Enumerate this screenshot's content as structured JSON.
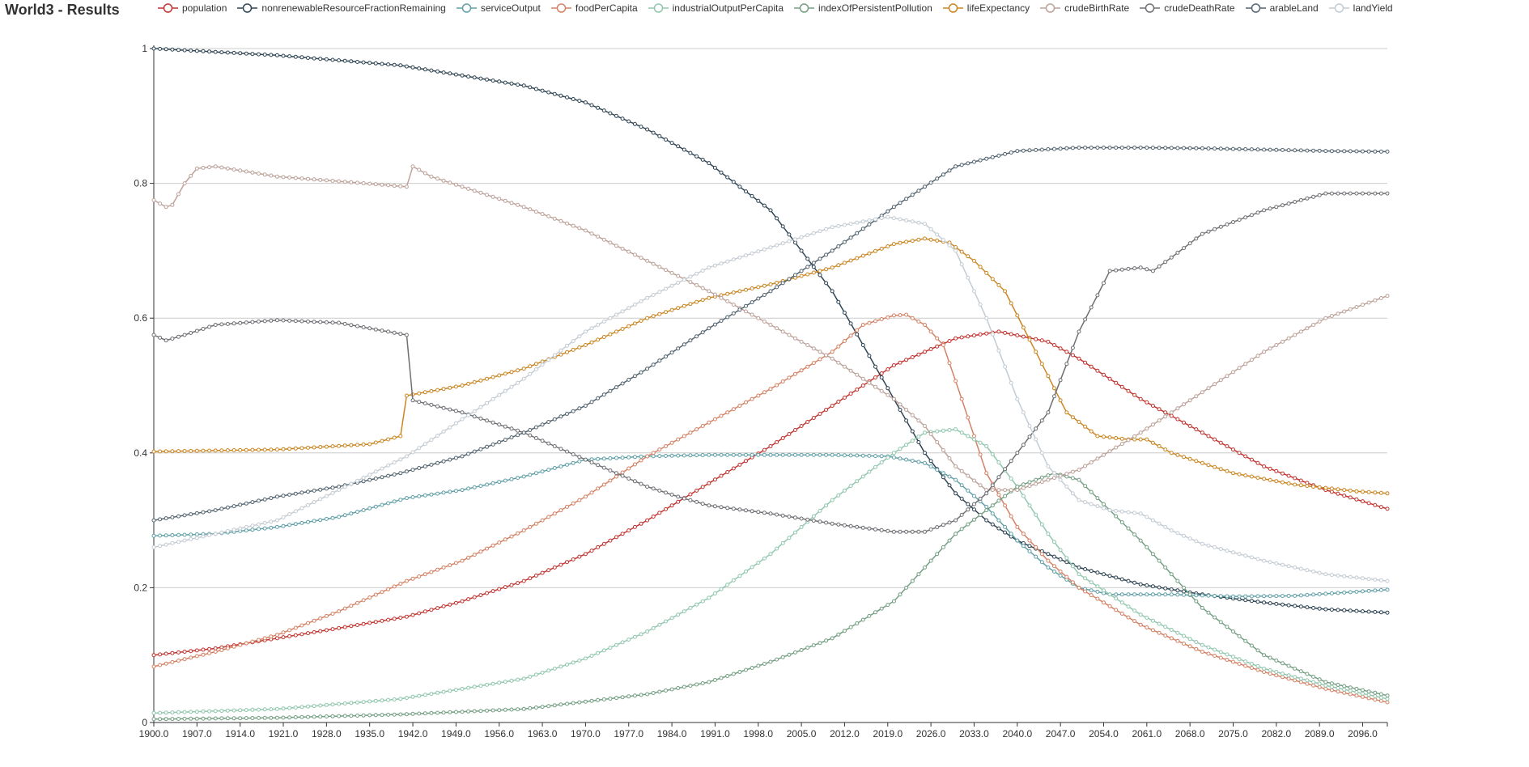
{
  "page": {
    "title": "World3 - Results"
  },
  "chart_data": {
    "type": "line",
    "title": "World3 - Results",
    "xlabel": "",
    "ylabel": "",
    "xlim": [
      1900,
      2100
    ],
    "ylim": [
      0,
      1
    ],
    "y_ticks": [
      "0",
      "0.2",
      "0.4",
      "0.6",
      "0.8",
      "1"
    ],
    "x_tick_labels": [
      "1900.0",
      "1907.0",
      "1914.0",
      "1921.0",
      "1928.0",
      "1935.0",
      "1942.0",
      "1949.0",
      "1956.0",
      "1963.0",
      "1970.0",
      "1977.0",
      "1984.0",
      "1991.0",
      "1998.0",
      "2005.0",
      "2012.0",
      "2019.0",
      "2026.0",
      "2033.0",
      "2040.0",
      "2047.0",
      "2054.0",
      "2061.0",
      "2068.0",
      "2075.0",
      "2082.0",
      "2089.0",
      "2096.0"
    ],
    "grid": "horizontal",
    "legend_position": "top",
    "markers": "hollow-circle",
    "series": [
      {
        "name": "population",
        "color": "#c23531",
        "points": [
          [
            1900,
            0.1
          ],
          [
            1910,
            0.11
          ],
          [
            1920,
            0.125
          ],
          [
            1930,
            0.14
          ],
          [
            1941,
            0.157
          ],
          [
            1950,
            0.18
          ],
          [
            1960,
            0.21
          ],
          [
            1970,
            0.25
          ],
          [
            1980,
            0.3
          ],
          [
            1990,
            0.355
          ],
          [
            2000,
            0.41
          ],
          [
            2010,
            0.47
          ],
          [
            2020,
            0.53
          ],
          [
            2030,
            0.57
          ],
          [
            2037,
            0.58
          ],
          [
            2045,
            0.565
          ],
          [
            2050,
            0.54
          ],
          [
            2060,
            0.48
          ],
          [
            2070,
            0.43
          ],
          [
            2080,
            0.38
          ],
          [
            2090,
            0.345
          ],
          [
            2100,
            0.317
          ]
        ]
      },
      {
        "name": "nonrenewableResourceFractionRemaining",
        "color": "#2f4554",
        "points": [
          [
            1900,
            1.0
          ],
          [
            1920,
            0.99
          ],
          [
            1940,
            0.975
          ],
          [
            1960,
            0.945
          ],
          [
            1970,
            0.92
          ],
          [
            1980,
            0.88
          ],
          [
            1990,
            0.83
          ],
          [
            2000,
            0.76
          ],
          [
            2005,
            0.7
          ],
          [
            2010,
            0.64
          ],
          [
            2015,
            0.56
          ],
          [
            2020,
            0.48
          ],
          [
            2025,
            0.4
          ],
          [
            2030,
            0.34
          ],
          [
            2035,
            0.3
          ],
          [
            2040,
            0.27
          ],
          [
            2050,
            0.23
          ],
          [
            2060,
            0.205
          ],
          [
            2070,
            0.19
          ],
          [
            2080,
            0.178
          ],
          [
            2090,
            0.168
          ],
          [
            2100,
            0.163
          ]
        ]
      },
      {
        "name": "serviceOutput",
        "color": "#61a0a8",
        "points": [
          [
            1900,
            0.277
          ],
          [
            1910,
            0.28
          ],
          [
            1920,
            0.29
          ],
          [
            1930,
            0.305
          ],
          [
            1941,
            0.333
          ],
          [
            1950,
            0.345
          ],
          [
            1960,
            0.365
          ],
          [
            1970,
            0.39
          ],
          [
            1980,
            0.395
          ],
          [
            1990,
            0.397
          ],
          [
            2000,
            0.397
          ],
          [
            2010,
            0.397
          ],
          [
            2019,
            0.395
          ],
          [
            2025,
            0.385
          ],
          [
            2030,
            0.36
          ],
          [
            2035,
            0.32
          ],
          [
            2040,
            0.27
          ],
          [
            2045,
            0.23
          ],
          [
            2050,
            0.2
          ],
          [
            2055,
            0.19
          ],
          [
            2065,
            0.19
          ],
          [
            2075,
            0.187
          ],
          [
            2085,
            0.188
          ],
          [
            2100,
            0.197
          ]
        ]
      },
      {
        "name": "foodPerCapita",
        "color": "#d48265",
        "points": [
          [
            1900,
            0.083
          ],
          [
            1910,
            0.105
          ],
          [
            1920,
            0.13
          ],
          [
            1930,
            0.165
          ],
          [
            1941,
            0.21
          ],
          [
            1950,
            0.24
          ],
          [
            1960,
            0.285
          ],
          [
            1970,
            0.335
          ],
          [
            1980,
            0.395
          ],
          [
            1990,
            0.445
          ],
          [
            2000,
            0.495
          ],
          [
            2010,
            0.55
          ],
          [
            2015,
            0.59
          ],
          [
            2020,
            0.604
          ],
          [
            2022,
            0.605
          ],
          [
            2025,
            0.59
          ],
          [
            2028,
            0.56
          ],
          [
            2031,
            0.48
          ],
          [
            2035,
            0.37
          ],
          [
            2040,
            0.29
          ],
          [
            2045,
            0.24
          ],
          [
            2050,
            0.2
          ],
          [
            2060,
            0.145
          ],
          [
            2070,
            0.105
          ],
          [
            2080,
            0.075
          ],
          [
            2090,
            0.05
          ],
          [
            2100,
            0.03
          ]
        ]
      },
      {
        "name": "industrialOutputPerCapita",
        "color": "#91c7ae",
        "points": [
          [
            1900,
            0.014
          ],
          [
            1920,
            0.02
          ],
          [
            1940,
            0.035
          ],
          [
            1960,
            0.065
          ],
          [
            1970,
            0.095
          ],
          [
            1980,
            0.135
          ],
          [
            1990,
            0.185
          ],
          [
            2000,
            0.25
          ],
          [
            2010,
            0.33
          ],
          [
            2020,
            0.4
          ],
          [
            2025,
            0.43
          ],
          [
            2030,
            0.435
          ],
          [
            2035,
            0.41
          ],
          [
            2040,
            0.35
          ],
          [
            2045,
            0.28
          ],
          [
            2050,
            0.22
          ],
          [
            2060,
            0.16
          ],
          [
            2070,
            0.115
          ],
          [
            2080,
            0.08
          ],
          [
            2090,
            0.055
          ],
          [
            2100,
            0.035
          ]
        ]
      },
      {
        "name": "indexOfPersistentPollution",
        "color": "#749f83",
        "points": [
          [
            1900,
            0.005
          ],
          [
            1920,
            0.007
          ],
          [
            1940,
            0.012
          ],
          [
            1960,
            0.02
          ],
          [
            1980,
            0.042
          ],
          [
            1990,
            0.06
          ],
          [
            2000,
            0.09
          ],
          [
            2010,
            0.125
          ],
          [
            2020,
            0.18
          ],
          [
            2030,
            0.28
          ],
          [
            2040,
            0.35
          ],
          [
            2046,
            0.37
          ],
          [
            2050,
            0.36
          ],
          [
            2060,
            0.27
          ],
          [
            2070,
            0.17
          ],
          [
            2080,
            0.1
          ],
          [
            2090,
            0.06
          ],
          [
            2100,
            0.04
          ]
        ]
      },
      {
        "name": "lifeExpectancy",
        "color": "#ca8622",
        "points": [
          [
            1900,
            0.402
          ],
          [
            1920,
            0.405
          ],
          [
            1935,
            0.413
          ],
          [
            1940,
            0.425
          ],
          [
            1941,
            0.485
          ],
          [
            1950,
            0.5
          ],
          [
            1960,
            0.525
          ],
          [
            1970,
            0.56
          ],
          [
            1980,
            0.6
          ],
          [
            1990,
            0.63
          ],
          [
            2000,
            0.65
          ],
          [
            2010,
            0.675
          ],
          [
            2020,
            0.71
          ],
          [
            2025,
            0.718
          ],
          [
            2029,
            0.712
          ],
          [
            2033,
            0.685
          ],
          [
            2038,
            0.64
          ],
          [
            2043,
            0.55
          ],
          [
            2048,
            0.46
          ],
          [
            2053,
            0.425
          ],
          [
            2058,
            0.42
          ],
          [
            2061,
            0.42
          ],
          [
            2065,
            0.4
          ],
          [
            2075,
            0.37
          ],
          [
            2085,
            0.353
          ],
          [
            2095,
            0.343
          ],
          [
            2100,
            0.34
          ]
        ]
      },
      {
        "name": "crudeBirthRate",
        "color": "#bda29a",
        "points": [
          [
            1900,
            0.775
          ],
          [
            1902,
            0.765
          ],
          [
            1903,
            0.768
          ],
          [
            1905,
            0.8
          ],
          [
            1907,
            0.822
          ],
          [
            1910,
            0.825
          ],
          [
            1920,
            0.81
          ],
          [
            1930,
            0.803
          ],
          [
            1941,
            0.795
          ],
          [
            1942,
            0.825
          ],
          [
            1945,
            0.81
          ],
          [
            1950,
            0.795
          ],
          [
            1960,
            0.765
          ],
          [
            1970,
            0.73
          ],
          [
            1980,
            0.685
          ],
          [
            1990,
            0.64
          ],
          [
            2000,
            0.59
          ],
          [
            2010,
            0.54
          ],
          [
            2020,
            0.48
          ],
          [
            2025,
            0.44
          ],
          [
            2030,
            0.38
          ],
          [
            2035,
            0.345
          ],
          [
            2040,
            0.345
          ],
          [
            2050,
            0.375
          ],
          [
            2060,
            0.43
          ],
          [
            2070,
            0.49
          ],
          [
            2080,
            0.55
          ],
          [
            2090,
            0.6
          ],
          [
            2100,
            0.633
          ]
        ]
      },
      {
        "name": "crudeDeathRate",
        "color": "#6e7074",
        "points": [
          [
            1900,
            0.575
          ],
          [
            1902,
            0.567
          ],
          [
            1905,
            0.575
          ],
          [
            1910,
            0.59
          ],
          [
            1920,
            0.597
          ],
          [
            1930,
            0.593
          ],
          [
            1941,
            0.575
          ],
          [
            1942,
            0.478
          ],
          [
            1950,
            0.46
          ],
          [
            1960,
            0.43
          ],
          [
            1970,
            0.39
          ],
          [
            1980,
            0.35
          ],
          [
            1985,
            0.335
          ],
          [
            1990,
            0.322
          ],
          [
            2000,
            0.31
          ],
          [
            2010,
            0.295
          ],
          [
            2020,
            0.283
          ],
          [
            2025,
            0.283
          ],
          [
            2030,
            0.3
          ],
          [
            2035,
            0.34
          ],
          [
            2040,
            0.4
          ],
          [
            2045,
            0.46
          ],
          [
            2050,
            0.58
          ],
          [
            2055,
            0.67
          ],
          [
            2060,
            0.675
          ],
          [
            2062,
            0.67
          ],
          [
            2065,
            0.69
          ],
          [
            2070,
            0.725
          ],
          [
            2080,
            0.76
          ],
          [
            2090,
            0.785
          ],
          [
            2100,
            0.785
          ]
        ]
      },
      {
        "name": "arableLand",
        "color": "#546570",
        "points": [
          [
            1900,
            0.3
          ],
          [
            1910,
            0.315
          ],
          [
            1920,
            0.335
          ],
          [
            1930,
            0.35
          ],
          [
            1940,
            0.37
          ],
          [
            1950,
            0.395
          ],
          [
            1960,
            0.43
          ],
          [
            1970,
            0.47
          ],
          [
            1980,
            0.525
          ],
          [
            1990,
            0.585
          ],
          [
            2000,
            0.64
          ],
          [
            2010,
            0.7
          ],
          [
            2020,
            0.765
          ],
          [
            2030,
            0.825
          ],
          [
            2040,
            0.848
          ],
          [
            2050,
            0.853
          ],
          [
            2060,
            0.853
          ],
          [
            2070,
            0.852
          ],
          [
            2080,
            0.85
          ],
          [
            2090,
            0.848
          ],
          [
            2100,
            0.847
          ]
        ]
      },
      {
        "name": "landYield",
        "color": "#c4ccd3",
        "points": [
          [
            1900,
            0.26
          ],
          [
            1910,
            0.28
          ],
          [
            1920,
            0.3
          ],
          [
            1930,
            0.345
          ],
          [
            1941,
            0.395
          ],
          [
            1950,
            0.45
          ],
          [
            1960,
            0.51
          ],
          [
            1970,
            0.58
          ],
          [
            1980,
            0.63
          ],
          [
            1990,
            0.675
          ],
          [
            2000,
            0.705
          ],
          [
            2010,
            0.735
          ],
          [
            2019,
            0.75
          ],
          [
            2025,
            0.74
          ],
          [
            2030,
            0.7
          ],
          [
            2035,
            0.6
          ],
          [
            2040,
            0.48
          ],
          [
            2045,
            0.38
          ],
          [
            2050,
            0.33
          ],
          [
            2055,
            0.315
          ],
          [
            2060,
            0.31
          ],
          [
            2065,
            0.285
          ],
          [
            2070,
            0.265
          ],
          [
            2080,
            0.24
          ],
          [
            2090,
            0.22
          ],
          [
            2100,
            0.21
          ]
        ]
      }
    ]
  }
}
